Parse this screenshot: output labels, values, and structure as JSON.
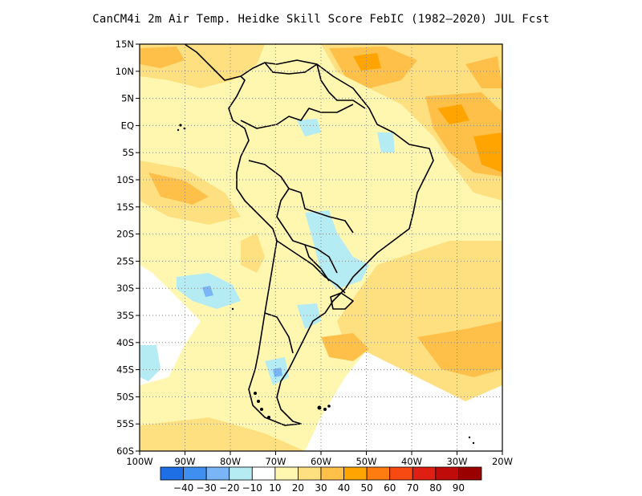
{
  "title": "CanCM4i  2m Air Temp. Heidke Skill Score FebIC (1982–2020) JUL Fcst",
  "lat_labels": [
    "15N",
    "10N",
    "5N",
    "EQ",
    "5S",
    "10S",
    "15S",
    "20S",
    "25S",
    "30S",
    "35S",
    "40S",
    "45S",
    "50S",
    "55S",
    "60S"
  ],
  "lon_labels": [
    "100W",
    "90W",
    "80W",
    "70W",
    "60W",
    "50W",
    "40W",
    "30W",
    "20W"
  ],
  "map": {
    "lon_range": [
      -100,
      -20
    ],
    "lat_range": [
      -60,
      15
    ],
    "grid": "dotted"
  },
  "colorbar": {
    "labels": [
      "-40",
      "-30",
      "-20",
      "-10",
      "10",
      "20",
      "30",
      "40",
      "50",
      "60",
      "70",
      "80",
      "90"
    ],
    "colors": [
      "#1e6fe6",
      "#3f8ff0",
      "#7ab6f7",
      "#b5ecf4",
      "#ffffff",
      "#fff7b0",
      "#ffe080",
      "#ffc04a",
      "#ffa400",
      "#ff7c10",
      "#f64a12",
      "#de1f12",
      "#c00b0b",
      "#9a0000"
    ]
  }
}
